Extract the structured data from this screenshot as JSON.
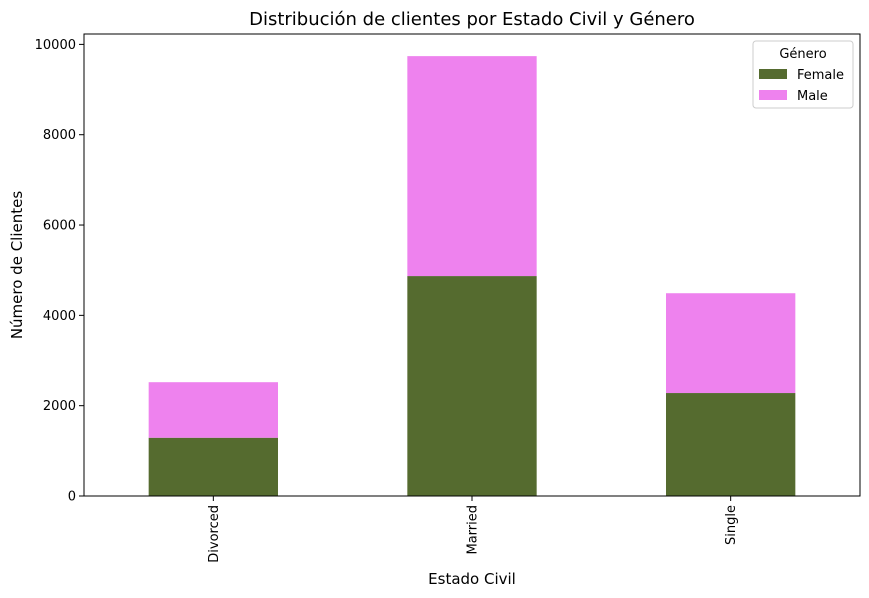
{
  "chart_data": {
    "type": "bar",
    "stacked": true,
    "title": "Distribución de clientes por Estado Civil y Género",
    "xlabel": "Estado Civil",
    "ylabel": "Número de Clientes",
    "categories": [
      "Divorced",
      "Married",
      "Single"
    ],
    "series": [
      {
        "name": "Female",
        "color": "#556b2f",
        "values": [
          1290,
          4870,
          2280
        ]
      },
      {
        "name": "Male",
        "color": "#ee82ee",
        "values": [
          1230,
          4870,
          2210
        ]
      }
    ],
    "ylim": [
      0,
      10230
    ],
    "yticks": [
      0,
      2000,
      4000,
      6000,
      8000,
      10000
    ],
    "grid": false,
    "legend": {
      "title": "Género",
      "position": "top-right"
    }
  }
}
